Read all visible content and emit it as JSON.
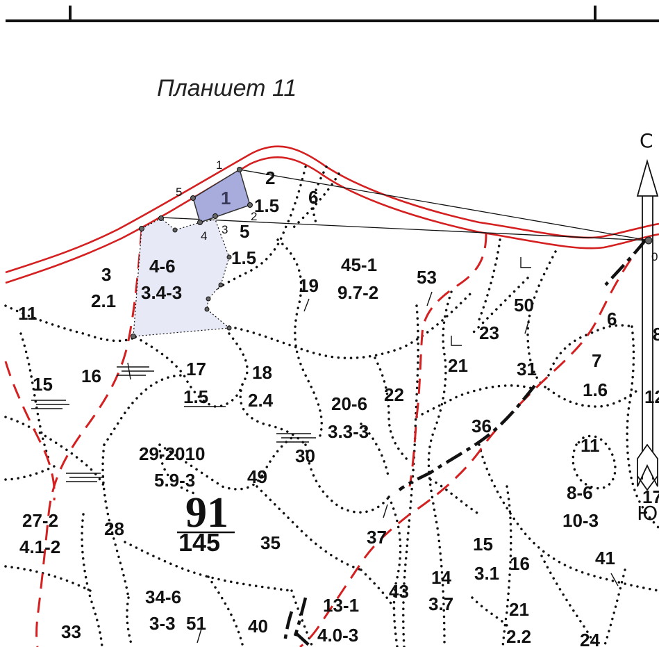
{
  "map": {
    "sheet_title": "Планшет 11",
    "compass": {
      "north": "С",
      "south": "Ю"
    },
    "block": {
      "number": "91",
      "area": "145"
    },
    "plot": {
      "number": "1",
      "vertex_labels": [
        "0",
        "1",
        "2",
        "3",
        "4",
        "5"
      ]
    },
    "labels": [
      {
        "text": "2",
        "kind": "number"
      },
      {
        "text": "6",
        "kind": "number"
      },
      {
        "text": "1.5",
        "kind": "number"
      },
      {
        "text": "5",
        "kind": "number"
      },
      {
        "text": "1.5",
        "kind": "number"
      },
      {
        "text": "3",
        "kind": "number"
      },
      {
        "text": "2.1",
        "kind": "number"
      },
      {
        "text": "4-6",
        "kind": "number"
      },
      {
        "text": "3.4-3",
        "kind": "number"
      },
      {
        "text": "45-1",
        "kind": "number"
      },
      {
        "text": "9.7-2",
        "kind": "number"
      },
      {
        "text": "19",
        "kind": "number"
      },
      {
        "text": "53",
        "kind": "number"
      },
      {
        "text": "50",
        "kind": "number"
      },
      {
        "text": "6",
        "kind": "number"
      },
      {
        "text": "23",
        "kind": "number"
      },
      {
        "text": "21",
        "kind": "number"
      },
      {
        "text": "31",
        "kind": "number"
      },
      {
        "text": "7",
        "kind": "number"
      },
      {
        "text": "1.6",
        "kind": "number"
      },
      {
        "text": "11",
        "kind": "number"
      },
      {
        "text": "15",
        "kind": "number"
      },
      {
        "text": "16",
        "kind": "number"
      },
      {
        "text": "17",
        "kind": "number"
      },
      {
        "text": "1.5",
        "kind": "number"
      },
      {
        "text": "18",
        "kind": "number"
      },
      {
        "text": "2.4",
        "kind": "number"
      },
      {
        "text": "20-6",
        "kind": "number"
      },
      {
        "text": "3.3-3",
        "kind": "number"
      },
      {
        "text": "22",
        "kind": "number"
      },
      {
        "text": "36",
        "kind": "number"
      },
      {
        "text": "11",
        "kind": "number"
      },
      {
        "text": "29-2010",
        "kind": "number"
      },
      {
        "text": "5.9-3",
        "kind": "number"
      },
      {
        "text": "30",
        "kind": "number"
      },
      {
        "text": "49",
        "kind": "number"
      },
      {
        "text": "8-6",
        "kind": "number"
      },
      {
        "text": "10-3",
        "kind": "number"
      },
      {
        "text": "27-2",
        "kind": "number"
      },
      {
        "text": "4.1-2",
        "kind": "number"
      },
      {
        "text": "28",
        "kind": "number"
      },
      {
        "text": "35",
        "kind": "number"
      },
      {
        "text": "37",
        "kind": "number"
      },
      {
        "text": "15",
        "kind": "number"
      },
      {
        "text": "3.1",
        "kind": "number"
      },
      {
        "text": "16",
        "kind": "number"
      },
      {
        "text": "41",
        "kind": "number"
      },
      {
        "text": "14",
        "kind": "number"
      },
      {
        "text": "3.7",
        "kind": "number"
      },
      {
        "text": "43",
        "kind": "number"
      },
      {
        "text": "34-6",
        "kind": "number"
      },
      {
        "text": "3-3",
        "kind": "number"
      },
      {
        "text": "51",
        "kind": "number"
      },
      {
        "text": "13-1",
        "kind": "number"
      },
      {
        "text": "4.0-3",
        "kind": "number"
      },
      {
        "text": "21",
        "kind": "number"
      },
      {
        "text": "2.2",
        "kind": "number"
      },
      {
        "text": "40",
        "kind": "number"
      },
      {
        "text": "33",
        "kind": "number"
      },
      {
        "text": "24",
        "kind": "number"
      },
      {
        "text": "8",
        "kind": "number"
      },
      {
        "text": "12",
        "kind": "number"
      },
      {
        "text": "17",
        "kind": "number"
      }
    ],
    "colors": {
      "boundary_red": "#d42020",
      "plot_fill": "#a8acdc",
      "plot2_fill": "#e8e9f7",
      "ink": "#111111"
    }
  }
}
